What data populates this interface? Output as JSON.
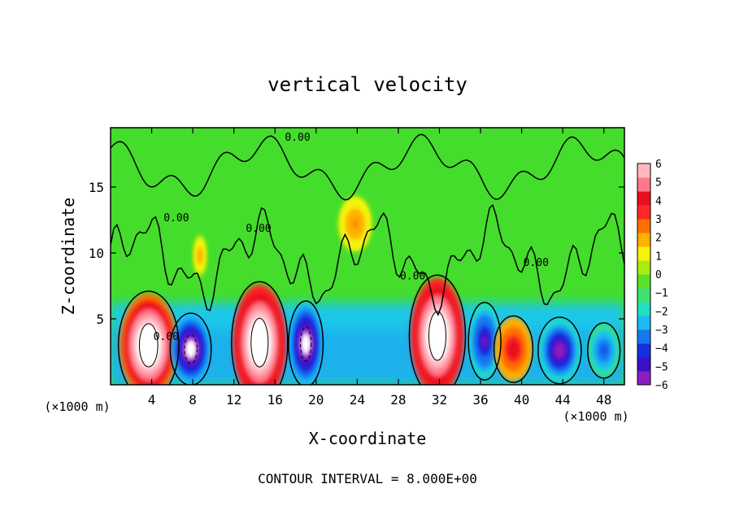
{
  "chart_data": {
    "type": "heatmap",
    "title": "vertical velocity",
    "xlabel": "X-coordinate",
    "ylabel": "Z-coordinate",
    "x_unit_label": "(×1000 m)",
    "y_unit_label": "(×1000 m)",
    "footer": "CONTOUR INTERVAL = 8.000E+00",
    "xlim": [
      0,
      50
    ],
    "ylim": [
      0,
      19.5
    ],
    "x_ticks": [
      4,
      8,
      12,
      16,
      20,
      24,
      28,
      32,
      36,
      40,
      44,
      48
    ],
    "y_ticks": [
      5,
      10,
      15
    ],
    "colorbar": {
      "ticks": [
        6,
        5,
        4,
        3,
        2,
        1,
        0,
        -1,
        -2,
        -3,
        -4,
        -5,
        -6
      ],
      "range": [
        -6,
        6
      ],
      "colors": [
        "#8a1fc0",
        "#3a10c8",
        "#1530e0",
        "#1678f0",
        "#1eb8f5",
        "#20e0c0",
        "#40e070",
        "#5ce02c",
        "#a8ec10",
        "#f4f408",
        "#ffb000",
        "#ff7000",
        "#ff2828",
        "#e8101c",
        "#ff7888",
        "#ffb8c0"
      ]
    },
    "contour_labels": [
      {
        "text": "0.00",
        "x": 18.2,
        "y": 18.5
      },
      {
        "text": "0.00",
        "x": 6.4,
        "y": 12.4
      },
      {
        "text": "0.00",
        "x": 14.4,
        "y": 11.6
      },
      {
        "text": "0.00",
        "x": 29.4,
        "y": 8.0
      },
      {
        "text": "0.00",
        "x": 41.4,
        "y": 9.0
      },
      {
        "text": "0.00",
        "x": 5.4,
        "y": 3.4
      }
    ],
    "features": [
      {
        "sign": "up",
        "x": 3.7,
        "z": 3.0,
        "rx": 2.8,
        "rz": 3.9,
        "w": 8.5
      },
      {
        "sign": "down",
        "x": 7.8,
        "z": 2.7,
        "rx": 1.9,
        "rz": 2.6,
        "w": -7.0
      },
      {
        "sign": "up",
        "x": 14.5,
        "z": 3.2,
        "rx": 2.6,
        "rz": 4.4,
        "w": 9.0
      },
      {
        "sign": "down",
        "x": 19.0,
        "z": 3.1,
        "rx": 1.6,
        "rz": 3.1,
        "w": -7.0
      },
      {
        "sign": "up",
        "x": 31.8,
        "z": 3.7,
        "rx": 2.6,
        "rz": 4.4,
        "w": 9.0
      },
      {
        "sign": "down",
        "x": 36.4,
        "z": 3.3,
        "rx": 1.5,
        "rz": 2.8,
        "w": -5.5
      },
      {
        "sign": "up",
        "x": 39.2,
        "z": 2.7,
        "rx": 1.8,
        "rz": 2.4,
        "w": 4.3
      },
      {
        "sign": "down",
        "x": 43.7,
        "z": 2.6,
        "rx": 2.0,
        "rz": 2.4,
        "w": -6.0
      },
      {
        "sign": "down",
        "x": 48.0,
        "z": 2.6,
        "rx": 1.5,
        "rz": 2.0,
        "w": -4.2
      },
      {
        "sign": "up",
        "x": 23.8,
        "z": 12.2,
        "rx": 1.6,
        "rz": 2.1,
        "w": 2.3
      },
      {
        "sign": "up",
        "x": 8.7,
        "z": 9.8,
        "rx": 0.6,
        "rz": 1.6,
        "w": 2.0
      }
    ]
  }
}
